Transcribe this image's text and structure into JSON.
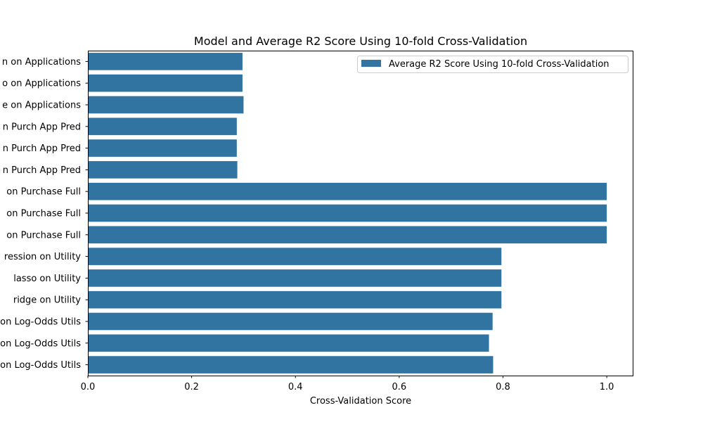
{
  "chart_data": {
    "type": "bar",
    "orientation": "horizontal",
    "title": "Model and Average R2 Score Using 10-fold Cross-Validation",
    "xlabel": "Cross-Validation Score",
    "ylabel": "",
    "xlim": [
      0,
      1.05
    ],
    "xticks": [
      0.0,
      0.2,
      0.4,
      0.6,
      0.8,
      1.0
    ],
    "xtick_labels": [
      "0.0",
      "0.2",
      "0.4",
      "0.6",
      "0.8",
      "1.0"
    ],
    "grid": false,
    "legend": {
      "placement": "upper-right",
      "entries": [
        "Average R2 Score Using 10-fold Cross-Validation"
      ]
    },
    "bar_color": "#3274a1",
    "categories": [
      "n on Applications",
      "o on Applications",
      "e on Applications",
      "n Purch App Pred",
      "n Purch App Pred",
      "n Purch App Pred",
      "on Purchase Full",
      "on Purchase Full",
      "on Purchase Full",
      "ression on Utility",
      "lasso on Utility",
      "ridge on Utility",
      "on Log-Odds Utils",
      "on Log-Odds Utils",
      "on Log-Odds Utils"
    ],
    "series": [
      {
        "name": "Average R2 Score Using 10-fold Cross-Validation",
        "values": [
          0.298,
          0.298,
          0.3,
          0.287,
          0.287,
          0.288,
          1.0,
          1.0,
          1.0,
          0.797,
          0.797,
          0.797,
          0.78,
          0.773,
          0.781
        ]
      }
    ]
  }
}
